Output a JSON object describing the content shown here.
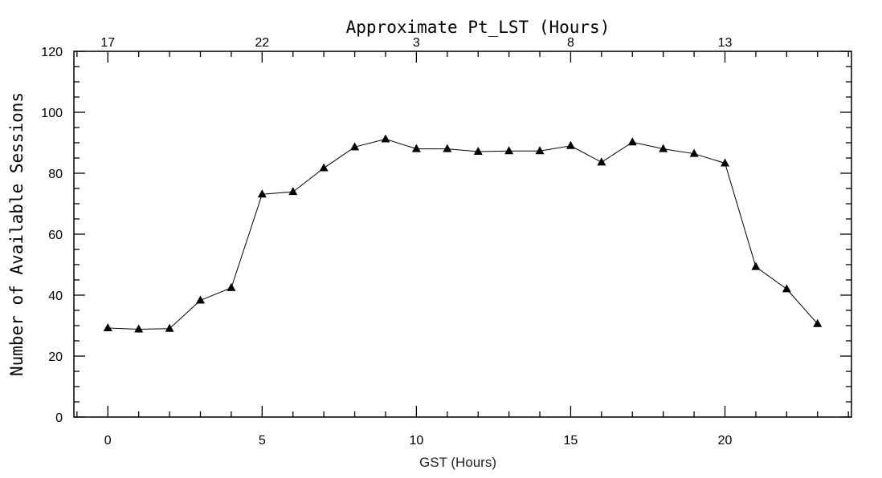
{
  "chart_data": {
    "type": "line",
    "title": "",
    "xlabel": "GST (Hours)",
    "ylabel": "Number of Available Sessions",
    "top_xlabel": "Approximate Pt_LST (Hours)",
    "xlim": [
      -1.1,
      24.1
    ],
    "ylim": [
      0,
      120
    ],
    "x_ticks": [
      0,
      5,
      10,
      15,
      20
    ],
    "y_ticks": [
      0,
      20,
      40,
      60,
      80,
      100,
      120
    ],
    "top_x_ticks": [
      {
        "gst": 0,
        "label": "17"
      },
      {
        "gst": 5,
        "label": "22"
      },
      {
        "gst": 10,
        "label": "3"
      },
      {
        "gst": 15,
        "label": "8"
      },
      {
        "gst": 20,
        "label": "13"
      }
    ],
    "grid": false,
    "marker": "triangle",
    "line_color": "#000000",
    "x": [
      0,
      1,
      2,
      3,
      4,
      5,
      6,
      7,
      8,
      9,
      10,
      11,
      12,
      13,
      14,
      15,
      16,
      17,
      18,
      19,
      20,
      21,
      22,
      23
    ],
    "values": [
      29.2,
      28.8,
      29.0,
      38.3,
      42.4,
      73.1,
      73.9,
      81.7,
      88.6,
      91.2,
      88.0,
      88.0,
      87.1,
      87.3,
      87.3,
      89.0,
      83.6,
      90.2,
      88.0,
      86.4,
      83.3,
      49.3,
      42.0,
      30.6
    ]
  }
}
